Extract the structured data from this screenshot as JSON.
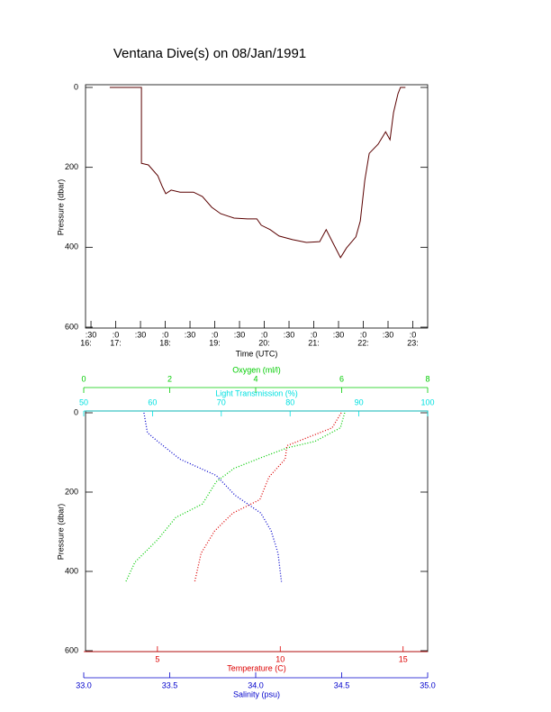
{
  "chart_data": [
    {
      "type": "line",
      "title": "Ventana Dive(s) on 08/Jan/1991",
      "x_label": "Time (UTC)",
      "y_label": "Pressure (dbar)",
      "color": "#5a0000",
      "x": [
        16.88,
        17.52,
        17.52,
        17.66,
        17.85,
        17.94,
        18.01,
        18.12,
        18.3,
        18.57,
        18.75,
        18.94,
        19.12,
        19.39,
        19.66,
        19.85,
        19.94,
        20.12,
        20.3,
        20.57,
        20.85,
        21.12,
        21.25,
        21.39,
        21.54,
        21.66,
        21.85,
        21.94,
        22.03,
        22.12,
        22.3,
        22.45,
        22.54,
        22.61,
        22.7,
        22.75,
        22.85
      ],
      "values": [
        0,
        0,
        190,
        194,
        221,
        248,
        266,
        257,
        262,
        262,
        273,
        300,
        316,
        327,
        329,
        329,
        345,
        356,
        372,
        381,
        388,
        386,
        356,
        390,
        426,
        402,
        374,
        334,
        232,
        165,
        142,
        111,
        131,
        63,
        16,
        0,
        0
      ],
      "xlim": [
        16.39,
        23.3
      ],
      "ylim": [
        0,
        600
      ],
      "yticks": [
        0,
        200,
        400,
        600
      ],
      "xticks": [
        {
          "value": 16.5,
          "label": ":30"
        },
        {
          "value": 17,
          "label": ":0"
        },
        {
          "value": 17.5,
          "label": ":30"
        },
        {
          "value": 18,
          "label": ":0"
        },
        {
          "value": 18.5,
          "label": ":30"
        },
        {
          "value": 19,
          "label": ":0"
        },
        {
          "value": 19.5,
          "label": ":30"
        },
        {
          "value": 20,
          "label": ":0"
        },
        {
          "value": 20.5,
          "label": ":30"
        },
        {
          "value": 21,
          "label": ":0"
        },
        {
          "value": 21.5,
          "label": ":30"
        },
        {
          "value": 22,
          "label": ":0"
        },
        {
          "value": 22.5,
          "label": ":30"
        },
        {
          "value": 23,
          "label": ":0"
        }
      ],
      "hour_labels": [
        {
          "value": 16.4,
          "label": "16:"
        },
        {
          "value": 17,
          "label": "17:"
        },
        {
          "value": 18,
          "label": "18:"
        },
        {
          "value": 19,
          "label": "19:"
        },
        {
          "value": 20,
          "label": "20:"
        },
        {
          "value": 21,
          "label": "21:"
        },
        {
          "value": 22,
          "label": "22:"
        },
        {
          "value": 23,
          "label": "23:"
        }
      ]
    },
    {
      "type": "profile",
      "y_label": "Pressure (dbar)",
      "ylim": [
        0,
        600
      ],
      "yticks": [
        0,
        200,
        400,
        600
      ],
      "x_axes": [
        {
          "label": "Oxygen (ml/l)",
          "color": "#00cc00",
          "position": "top",
          "xlim": [
            0,
            8
          ],
          "xticks": [
            0,
            2,
            4,
            6,
            8
          ],
          "x": [
            6.07,
            5.97,
            5.38,
            4.75,
            4.13,
            3.5,
            3.08,
            2.76,
            2.14,
            1.72,
            1.19,
            0.98
          ],
          "values": [
            0,
            38,
            72,
            88,
            113,
            140,
            174,
            230,
            264,
            320,
            377,
            426
          ]
        },
        {
          "label": "Light Transmission (%)",
          "color": "#00e0e0",
          "position": "top",
          "xlim": [
            50,
            100
          ],
          "xticks": [
            50,
            60,
            70,
            80,
            90,
            100
          ]
        },
        {
          "label": "Temperature (C)",
          "color": "#dd0000",
          "position": "bottom",
          "xlim": [
            2,
            16
          ],
          "xticks": [
            5,
            10,
            15
          ],
          "x": [
            12.48,
            12.11,
            10.27,
            10.2,
            9.54,
            9.17,
            8.07,
            7.33,
            6.78,
            6.52
          ],
          "values": [
            0,
            38,
            83,
            117,
            162,
            219,
            253,
            298,
            354,
            426
          ]
        },
        {
          "label": "Salinity (psu)",
          "color": "#0000cc",
          "position": "bottom",
          "xlim": [
            33,
            35
          ],
          "xticks": [
            {
              "value": 33,
              "label": "33.0"
            },
            {
              "value": 33.5,
              "label": "33.5"
            },
            {
              "value": 34,
              "label": "34.0"
            },
            {
              "value": 34.5,
              "label": "34.5"
            },
            {
              "value": 35,
              "label": "35.0"
            }
          ],
          "x": [
            33.35,
            33.37,
            33.43,
            33.56,
            33.77,
            33.88,
            34.03,
            34.09,
            34.13,
            34.15
          ],
          "values": [
            0,
            50,
            72,
            117,
            158,
            208,
            253,
            298,
            354,
            426
          ]
        }
      ]
    }
  ]
}
